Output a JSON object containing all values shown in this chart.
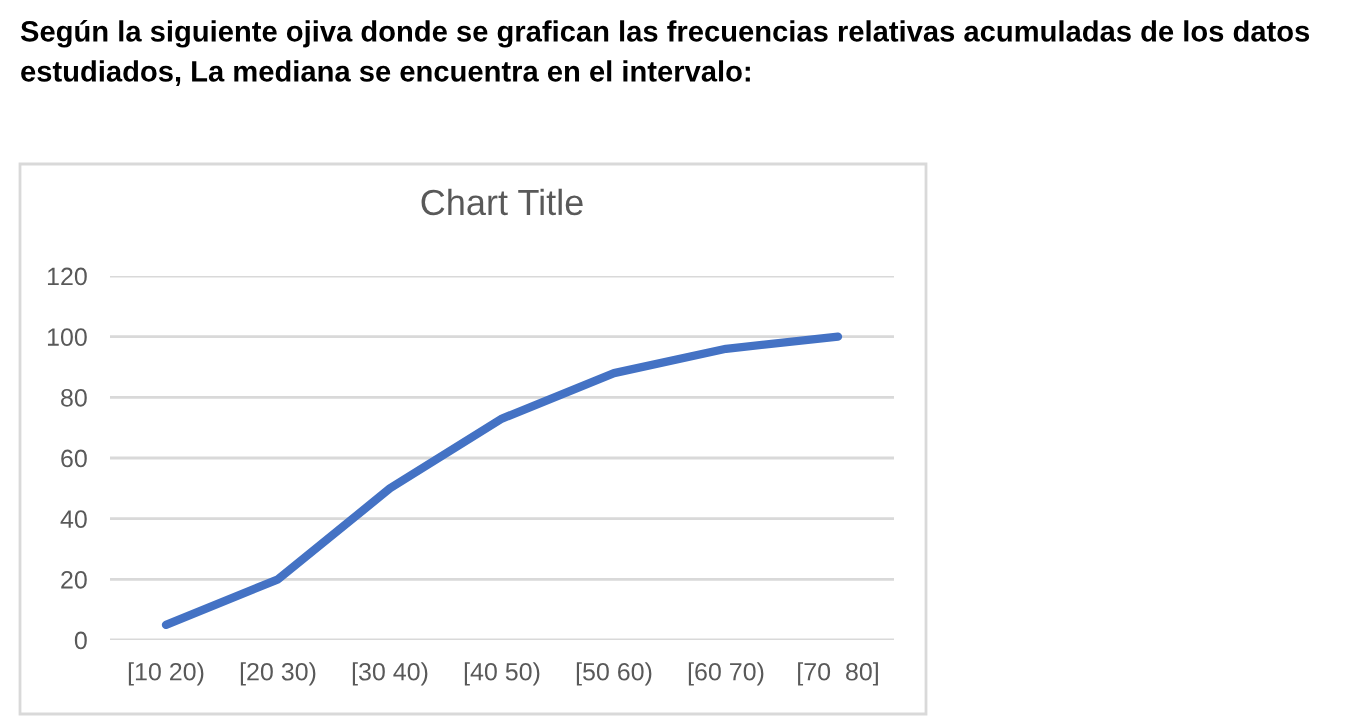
{
  "chart_data": {
    "type": "line",
    "title": "Chart Title",
    "annotations": [
      "Según la siguiente ojiva donde se grafican las frecuencias relativas acumuladas de los datos estudiados, La mediana se encuentra en el intervalo:"
    ],
    "categories": [
      "[10 20)",
      "[20 30)",
      "[30 40)",
      "[40 50)",
      "[50 60)",
      "[60 70)",
      "[70  80]"
    ],
    "series": [
      {
        "color": "#4472c4",
        "values": [
          5,
          20,
          50,
          73,
          88,
          96,
          100
        ]
      }
    ],
    "ylim": [
      0,
      120
    ],
    "yticks": [
      0,
      20,
      40,
      60,
      80,
      100,
      120
    ],
    "grid": "y",
    "marker": "none",
    "line_style": "solid"
  }
}
